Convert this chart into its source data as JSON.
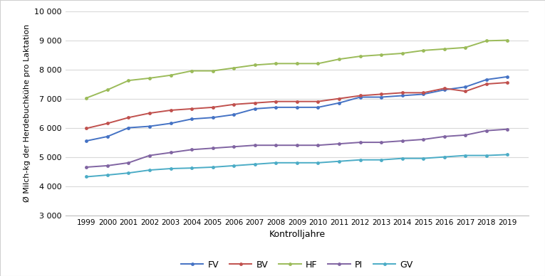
{
  "years": [
    1999,
    2000,
    2001,
    2002,
    2003,
    2004,
    2005,
    2006,
    2007,
    2008,
    2009,
    2010,
    2011,
    2012,
    2013,
    2014,
    2015,
    2016,
    2017,
    2018,
    2019
  ],
  "FV": [
    5550,
    5700,
    6000,
    6050,
    6150,
    6300,
    6350,
    6450,
    6650,
    6700,
    6700,
    6700,
    6850,
    7050,
    7050,
    7100,
    7150,
    7300,
    7400,
    7650,
    7750
  ],
  "BV": [
    5980,
    6150,
    6350,
    6500,
    6600,
    6650,
    6700,
    6800,
    6850,
    6900,
    6900,
    6900,
    7000,
    7100,
    7150,
    7200,
    7200,
    7350,
    7250,
    7500,
    7550
  ],
  "HF": [
    7020,
    7300,
    7620,
    7700,
    7800,
    7950,
    7950,
    8050,
    8150,
    8200,
    8200,
    8200,
    8350,
    8450,
    8500,
    8550,
    8650,
    8700,
    8750,
    8980,
    9000
  ],
  "PI": [
    4650,
    4700,
    4800,
    5050,
    5150,
    5250,
    5300,
    5350,
    5400,
    5400,
    5400,
    5400,
    5450,
    5500,
    5500,
    5550,
    5600,
    5700,
    5750,
    5900,
    5950
  ],
  "GV": [
    4320,
    4380,
    4450,
    4550,
    4600,
    4620,
    4650,
    4700,
    4750,
    4800,
    4800,
    4800,
    4850,
    4900,
    4900,
    4950,
    4950,
    5000,
    5050,
    5050,
    5080
  ],
  "colors": {
    "FV": "#4472C4",
    "BV": "#C0504D",
    "HF": "#9BBB59",
    "PI": "#8064A2",
    "GV": "#4BACC6"
  },
  "ylabel": "Ø Milch-kg der Herdebuchkühe pro Laktation",
  "xlabel": "Kontrolljahre",
  "ylim": [
    3000,
    10000
  ],
  "yticks": [
    3000,
    4000,
    5000,
    6000,
    7000,
    8000,
    9000,
    10000
  ],
  "background_color": "#ffffff",
  "grid_color": "#d9d9d9",
  "marker": "o",
  "markersize": 3.5,
  "linewidth": 1.4,
  "border_color": "#d0d0d0"
}
